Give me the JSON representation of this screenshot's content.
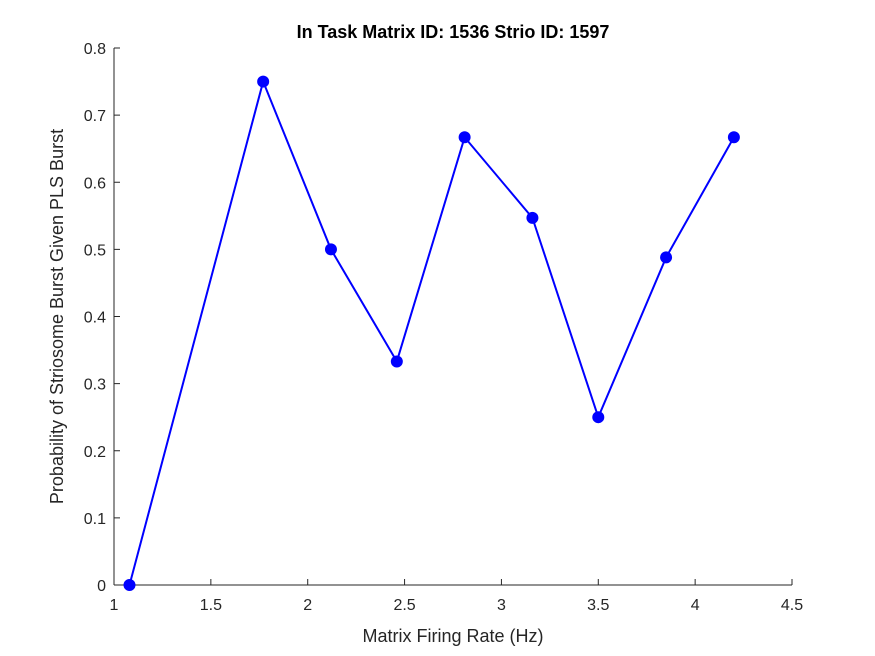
{
  "chart_data": {
    "type": "line",
    "title": "In Task Matrix ID: 1536 Strio ID: 1597",
    "xlabel": "Matrix Firing Rate (Hz)",
    "ylabel": "Probability of Striosome Burst Given PLS Burst",
    "xlim": [
      1,
      4.5
    ],
    "ylim": [
      0,
      0.8
    ],
    "xticks": [
      "1",
      "1.5",
      "2",
      "2.5",
      "3",
      "3.5",
      "4",
      "4.5"
    ],
    "yticks": [
      "0",
      "0.1",
      "0.2",
      "0.3",
      "0.4",
      "0.5",
      "0.6",
      "0.7",
      "0.8"
    ],
    "grid": false,
    "series": [
      {
        "color": "#0000ff",
        "marker": "circle",
        "x": [
          1.08,
          1.77,
          2.12,
          2.46,
          2.81,
          3.16,
          3.5,
          3.85,
          4.2
        ],
        "y": [
          0.0,
          0.75,
          0.5,
          0.333,
          0.667,
          0.547,
          0.25,
          0.488,
          0.667
        ]
      }
    ]
  }
}
